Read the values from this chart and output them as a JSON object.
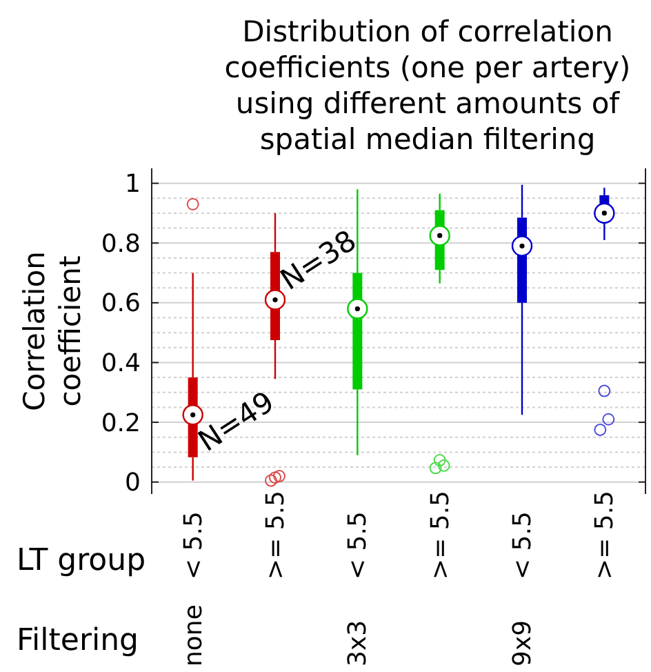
{
  "chart_data": {
    "type": "box",
    "title": "Distribution of correlation coefficients (one per artery) using different amounts of spatial median filtering",
    "ylabel": "Correlation coefficient",
    "categories": [
      "< 5.5",
      ">= 5.5",
      "< 5.5",
      ">= 5.5",
      "< 5.5",
      ">= 5.5"
    ],
    "colors": [
      "#cc0000",
      "#cc0000",
      "#00cc00",
      "#00cc00",
      "#0000cc",
      "#0000cc"
    ],
    "boxes": [
      {
        "low": 0.005,
        "q1": 0.083,
        "median": 0.225,
        "q3": 0.35,
        "high": 0.7,
        "outliers": [
          0.93
        ]
      },
      {
        "low": 0.345,
        "q1": 0.475,
        "median": 0.61,
        "q3": 0.77,
        "high": 0.9,
        "outliers": [
          0.015,
          0.02,
          0.005
        ]
      },
      {
        "low": 0.09,
        "q1": 0.31,
        "median": 0.58,
        "q3": 0.7,
        "high": 0.98
      },
      {
        "low": 0.665,
        "q1": 0.71,
        "median": 0.825,
        "q3": 0.91,
        "high": 0.965,
        "outliers": [
          0.073,
          0.055,
          0.047
        ]
      },
      {
        "low": 0.225,
        "q1": 0.6,
        "median": 0.79,
        "q3": 0.885,
        "high": 0.995
      },
      {
        "low": 0.81,
        "q1": 0.875,
        "median": 0.9,
        "q3": 0.96,
        "high": 0.985,
        "outliers": [
          0.305,
          0.21,
          0.175
        ]
      }
    ],
    "ylim": [
      -0.04,
      1.05
    ],
    "yticks": [
      0,
      {
        "value": 0.05,
        "label": null
      },
      {
        "value": 0.1,
        "label": null
      },
      {
        "value": 0.15,
        "label": null
      },
      0.2,
      {
        "value": 0.25,
        "label": null
      },
      {
        "value": 0.3,
        "label": null
      },
      {
        "value": 0.35,
        "label": null
      },
      0.4,
      {
        "value": 0.45,
        "label": null
      },
      {
        "value": 0.5,
        "label": null
      },
      {
        "value": 0.55,
        "label": null
      },
      0.6,
      {
        "value": 0.65,
        "label": null
      },
      {
        "value": 0.7,
        "label": null
      },
      {
        "value": 0.75,
        "label": null
      },
      0.8,
      {
        "value": 0.85,
        "label": null
      },
      {
        "value": 0.9,
        "label": null
      },
      {
        "value": 0.95,
        "label": null
      },
      1
    ],
    "grid": "y",
    "annotations": [
      "LT group",
      "Filtering",
      "none",
      "3x3",
      "9x9",
      "N=49",
      "N=38"
    ]
  }
}
